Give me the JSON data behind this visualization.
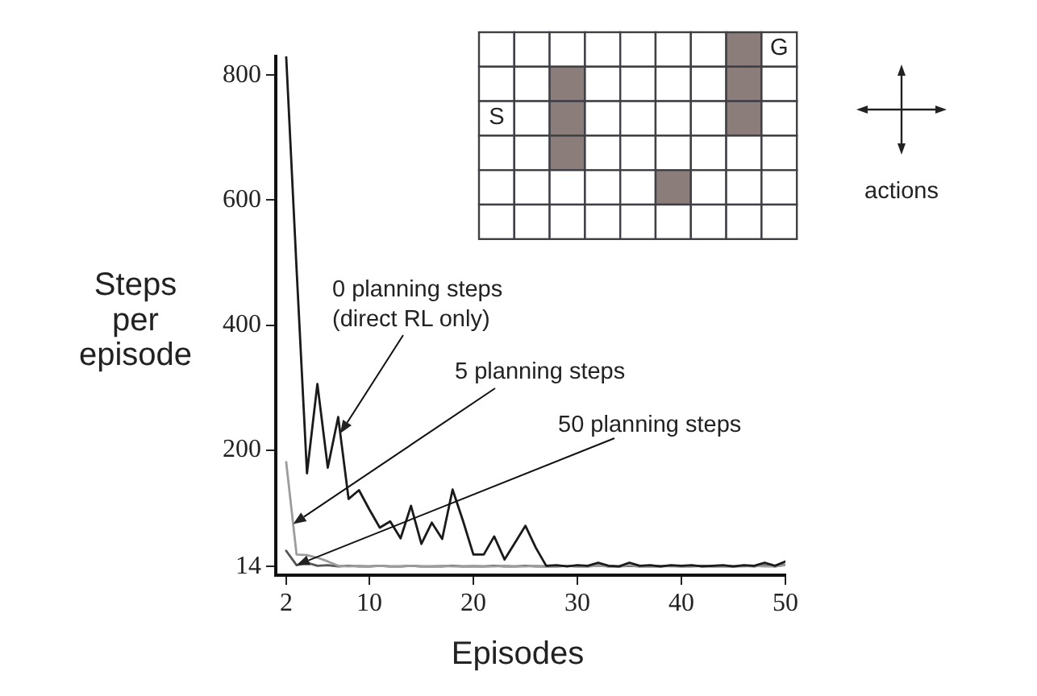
{
  "chart_data": {
    "type": "line",
    "xlabel": "Episodes",
    "ylabel": "Steps per episode",
    "x": [
      2,
      3,
      4,
      5,
      6,
      7,
      8,
      9,
      10,
      11,
      12,
      13,
      14,
      15,
      16,
      17,
      18,
      19,
      20,
      21,
      22,
      23,
      24,
      25,
      26,
      27,
      28,
      29,
      30,
      31,
      32,
      33,
      34,
      35,
      36,
      37,
      38,
      39,
      40,
      41,
      42,
      43,
      44,
      45,
      46,
      47,
      48,
      49,
      50
    ],
    "series": [
      {
        "name": "0 planning steps (direct RL only)",
        "color": "#1a1a1a",
        "values": [
          830,
          490,
          163,
          306,
          172,
          253,
          122,
          136,
          105,
          76,
          86,
          59,
          111,
          50,
          84,
          58,
          137,
          87,
          33,
          33,
          62,
          25,
          52,
          79,
          44,
          15,
          16,
          14,
          16,
          15,
          20,
          15,
          14,
          20,
          15,
          16,
          14,
          16,
          15,
          16,
          14,
          15,
          16,
          14,
          16,
          15,
          20,
          15,
          22
        ]
      },
      {
        "name": "5 planning steps",
        "color": "#9c9c9c",
        "values": [
          181,
          33,
          32,
          28,
          22,
          15,
          14,
          15,
          14,
          15,
          14,
          14,
          15,
          14,
          14,
          15,
          14,
          14,
          15,
          14,
          14,
          15,
          14,
          14,
          15,
          14,
          14,
          15,
          14,
          14,
          15,
          14,
          14,
          16,
          14,
          14,
          15,
          14,
          14,
          15,
          14,
          14,
          15,
          14,
          14,
          15,
          14,
          14,
          16
        ]
      },
      {
        "name": "50 planning steps",
        "color": "#555555",
        "values": [
          39,
          16,
          20,
          15,
          16,
          14,
          15,
          14,
          14,
          15,
          14,
          14,
          15,
          14,
          14,
          14,
          15,
          14,
          14,
          14,
          15,
          14,
          14,
          15,
          14,
          14,
          14,
          15,
          14,
          14,
          16,
          14,
          14,
          15,
          14,
          14,
          14,
          15,
          14,
          14,
          15,
          14,
          14,
          14,
          15,
          14,
          16,
          14,
          17
        ]
      }
    ],
    "xlim": [
      1,
      50
    ],
    "ylim": [
      0,
      830
    ],
    "xticks": [
      2,
      10,
      20,
      30,
      40,
      50
    ],
    "yticks": [
      14,
      200,
      400,
      600,
      800
    ],
    "annotations": [
      "S",
      "G",
      "actions"
    ]
  }
}
